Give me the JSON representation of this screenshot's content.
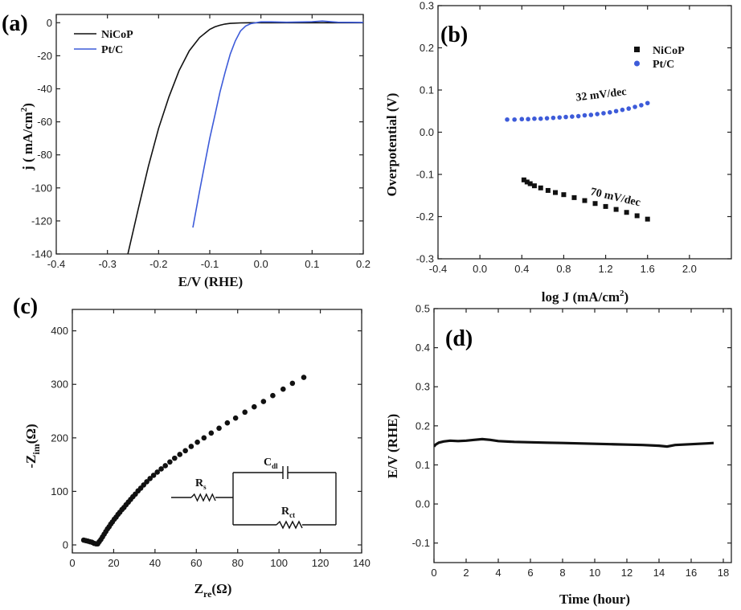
{
  "chart_data": [
    {
      "id": "a",
      "type": "line",
      "panel_label": "(a)",
      "xlabel": "E/V (RHE)",
      "ylabel": "j ( mA/cm²)",
      "xlim": [
        -0.4,
        0.2
      ],
      "ylim": [
        -140,
        5
      ],
      "xticks": [
        -0.4,
        -0.3,
        -0.2,
        -0.1,
        0.0,
        0.1,
        0.2
      ],
      "xtick_labels": [
        "-0.4",
        "-0.3",
        "-0.2",
        "-0.1",
        "0.0",
        "0.1",
        "0.2"
      ],
      "yticks": [
        0,
        -20,
        -40,
        -60,
        -80,
        -100,
        -120,
        -140
      ],
      "ytick_labels": [
        "0",
        "-20",
        "-40",
        "-60",
        "-80",
        "-100",
        "-120",
        "-140"
      ],
      "legend_position": "top-left",
      "series": [
        {
          "name": "NiCoP",
          "color": "#111111",
          "x": [
            -0.26,
            -0.24,
            -0.22,
            -0.2,
            -0.18,
            -0.16,
            -0.14,
            -0.12,
            -0.1,
            -0.09,
            -0.08,
            -0.07,
            -0.06,
            -0.04,
            -0.02,
            0.0,
            0.05,
            0.1,
            0.2
          ],
          "y": [
            -140,
            -113,
            -87,
            -64,
            -45,
            -29,
            -17,
            -9,
            -4,
            -2.5,
            -1.5,
            -0.8,
            -0.4,
            -0.1,
            0,
            0,
            0,
            0,
            0
          ]
        },
        {
          "name": "Pt/C",
          "color": "#3d5bd9",
          "x": [
            -0.133,
            -0.12,
            -0.11,
            -0.1,
            -0.09,
            -0.08,
            -0.07,
            -0.06,
            -0.05,
            -0.04,
            -0.03,
            -0.02,
            -0.01,
            0.0,
            0.02,
            0.05,
            0.1,
            0.12,
            0.15,
            0.2
          ],
          "y": [
            -124,
            -102,
            -86,
            -70,
            -56,
            -42,
            -30,
            -19,
            -11,
            -5,
            -2,
            -0.6,
            0,
            0.5,
            0.5,
            0.3,
            0.6,
            1.0,
            0.3,
            0.2
          ]
        }
      ]
    },
    {
      "id": "b",
      "type": "scatter",
      "panel_label": "(b)",
      "xlabel": "log J (mA/cm²)",
      "ylabel": "Overpotential (V)",
      "xlim": [
        -0.4,
        2.4
      ],
      "ylim": [
        -0.3,
        0.3
      ],
      "xticks": [
        -0.4,
        0.0,
        0.4,
        0.8,
        1.2,
        1.6,
        2.0
      ],
      "xtick_labels": [
        "-0.4",
        "0.0",
        "0.4",
        "0.8",
        "1.2",
        "1.6",
        "2.0"
      ],
      "yticks": [
        -0.3,
        -0.2,
        -0.1,
        0.0,
        0.1,
        0.2,
        0.3
      ],
      "ytick_labels": [
        "-0.3",
        "-0.2",
        "-0.1",
        "0.0",
        "0.1",
        "0.2",
        "0.3"
      ],
      "legend_position": "top-right",
      "series": [
        {
          "name": "NiCoP",
          "color": "#111111",
          "marker": "square",
          "x": [
            0.42,
            0.45,
            0.48,
            0.52,
            0.58,
            0.65,
            0.72,
            0.8,
            0.9,
            1.0,
            1.1,
            1.2,
            1.3,
            1.4,
            1.5,
            1.6
          ],
          "y": [
            -0.113,
            -0.118,
            -0.122,
            -0.127,
            -0.132,
            -0.138,
            -0.143,
            -0.148,
            -0.155,
            -0.162,
            -0.169,
            -0.176,
            -0.183,
            -0.19,
            -0.198,
            -0.206
          ]
        },
        {
          "name": "Pt/C",
          "color": "#3d5bd9",
          "marker": "circle",
          "x": [
            0.26,
            0.33,
            0.4,
            0.46,
            0.52,
            0.58,
            0.64,
            0.7,
            0.76,
            0.82,
            0.88,
            0.94,
            1.0,
            1.06,
            1.12,
            1.18,
            1.24,
            1.3,
            1.36,
            1.42,
            1.48,
            1.54,
            1.6
          ],
          "y": [
            0.03,
            0.03,
            0.031,
            0.031,
            0.032,
            0.032,
            0.033,
            0.034,
            0.035,
            0.036,
            0.037,
            0.038,
            0.04,
            0.041,
            0.043,
            0.045,
            0.047,
            0.05,
            0.053,
            0.056,
            0.06,
            0.064,
            0.069
          ]
        }
      ],
      "annotations": [
        {
          "text": "32 mV/dec",
          "x": 0.92,
          "y": 0.074,
          "angle": -7
        },
        {
          "text": "70 mV/dec",
          "x": 1.05,
          "y": -0.148,
          "angle": 13
        }
      ]
    },
    {
      "id": "c",
      "type": "scatter",
      "panel_label": "(c)",
      "xlabel": "Zre(Ω)",
      "ylabel": "-Zim(Ω)",
      "xlim": [
        0,
        140
      ],
      "ylim": [
        -15,
        440
      ],
      "xticks": [
        0,
        20,
        40,
        60,
        80,
        100,
        120,
        140
      ],
      "xtick_labels": [
        "0",
        "20",
        "40",
        "60",
        "80",
        "100",
        "120",
        "140"
      ],
      "yticks": [
        0,
        100,
        200,
        300,
        400
      ],
      "ytick_labels": [
        "0",
        "100",
        "200",
        "300",
        "400"
      ],
      "series": [
        {
          "name": "",
          "color": "#111111",
          "marker": "circle",
          "x": [
            5.5,
            6.5,
            7.5,
            8.5,
            9.5,
            10.5,
            11.5,
            12.3,
            13.0,
            13.8,
            14.6,
            15.4,
            16.2,
            17.0,
            17.8,
            18.6,
            19.4,
            20.3,
            21.2,
            22.1,
            23.0,
            24.0,
            25.0,
            26.0,
            27.1,
            28.2,
            29.3,
            30.5,
            31.8,
            33.1,
            34.5,
            36.0,
            37.6,
            39.3,
            41.1,
            43.0,
            45.0,
            47.2,
            49.5,
            52.0,
            54.7,
            57.5,
            60.5,
            63.7,
            67.2,
            71.0,
            75.0,
            79.0,
            83.5,
            88.0,
            92.5,
            97.0,
            102.0,
            106.5,
            112.0
          ],
          "y": [
            9,
            8,
            7,
            6,
            5,
            3,
            2,
            2,
            6,
            10,
            15,
            20,
            25,
            30,
            34,
            39,
            43,
            48,
            52,
            57,
            61,
            66,
            70,
            75,
            80,
            85,
            90,
            95,
            101,
            106,
            112,
            118,
            124,
            130,
            136,
            142,
            148,
            155,
            162,
            169,
            176,
            184,
            192,
            200,
            209,
            218,
            228,
            237,
            248,
            258,
            268,
            279,
            291,
            302,
            313
          ]
        }
      ],
      "inset_circuit": {
        "rs": "Rs",
        "cdl": "Cdl",
        "rct": "Rct"
      }
    },
    {
      "id": "d",
      "type": "line",
      "panel_label": "(d)",
      "xlabel": "Time (hour)",
      "ylabel": "E/V (RHE)",
      "xlim": [
        0,
        18.5
      ],
      "ylim": [
        -0.15,
        0.5
      ],
      "xticks": [
        0,
        2,
        4,
        6,
        8,
        10,
        12,
        14,
        16,
        18
      ],
      "xtick_labels": [
        "0",
        "2",
        "4",
        "6",
        "8",
        "10",
        "12",
        "14",
        "16",
        "18"
      ],
      "yticks": [
        -0.1,
        0.0,
        0.1,
        0.2,
        0.3,
        0.4,
        0.5
      ],
      "ytick_labels": [
        "-0.1",
        "0.0",
        "0.1",
        "0.2",
        "0.3",
        "0.4",
        "0.5"
      ],
      "series": [
        {
          "name": "",
          "color": "#111111",
          "x": [
            0,
            0.1,
            0.3,
            0.6,
            1.0,
            1.5,
            2.0,
            2.5,
            3.0,
            3.5,
            4.0,
            5.0,
            6.0,
            7.0,
            8.0,
            9.0,
            10.0,
            11.0,
            12.0,
            13.0,
            14.0,
            14.5,
            15.0,
            16.0,
            17.0,
            17.4
          ],
          "y": [
            0.147,
            0.152,
            0.157,
            0.16,
            0.162,
            0.161,
            0.162,
            0.164,
            0.166,
            0.164,
            0.161,
            0.159,
            0.158,
            0.157,
            0.156,
            0.155,
            0.154,
            0.153,
            0.152,
            0.151,
            0.149,
            0.147,
            0.151,
            0.153,
            0.155,
            0.156
          ]
        }
      ]
    }
  ]
}
